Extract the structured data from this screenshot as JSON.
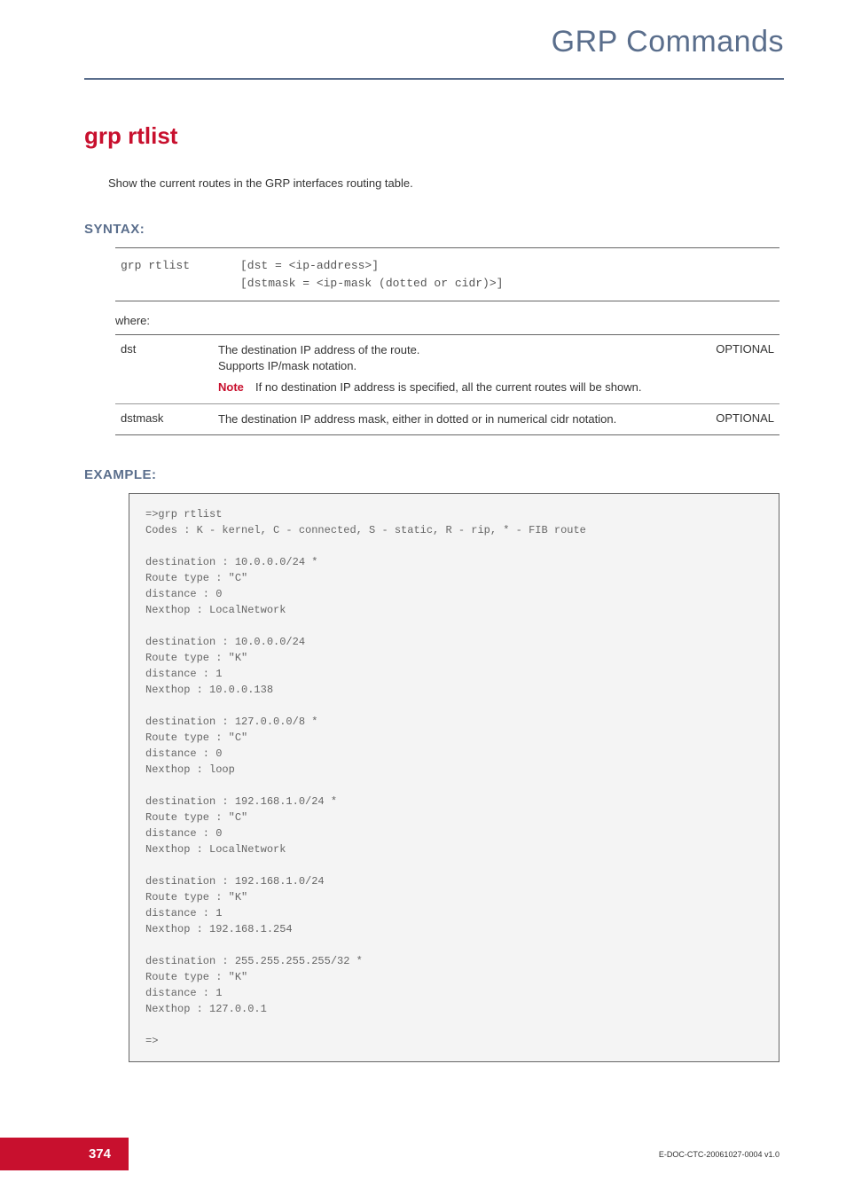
{
  "header": {
    "chapter_title": "GRP Commands"
  },
  "command": {
    "name": "grp rtlist",
    "description": "Show the current routes in the GRP interfaces routing table."
  },
  "syntax": {
    "label": "SYNTAX:",
    "command": "grp rtlist",
    "args_line1": "[dst = <ip-address>]",
    "args_line2": "[dstmask = <ip-mask (dotted or cidr)>]",
    "where_label": "where:",
    "params": [
      {
        "name": "dst",
        "desc_line1": "The destination IP address of the route.",
        "desc_line2": "Supports IP/mask notation.",
        "note_label": "Note",
        "note_text": "If no destination IP address is specified, all the current routes will be shown.",
        "optional": "OPTIONAL"
      },
      {
        "name": "dstmask",
        "desc": "The destination IP address mask, either in dotted or in numerical cidr notation.",
        "optional": "OPTIONAL"
      }
    ]
  },
  "example": {
    "label": "EXAMPLE:",
    "text": "=>grp rtlist\nCodes : K - kernel, C - connected, S - static, R - rip, * - FIB route\n\ndestination : 10.0.0.0/24 *\nRoute type : \"C\"\ndistance : 0\nNexthop : LocalNetwork\n\ndestination : 10.0.0.0/24\nRoute type : \"K\"\ndistance : 1\nNexthop : 10.0.0.138\n\ndestination : 127.0.0.0/8 *\nRoute type : \"C\"\ndistance : 0\nNexthop : loop\n\ndestination : 192.168.1.0/24 *\nRoute type : \"C\"\ndistance : 0\nNexthop : LocalNetwork\n\ndestination : 192.168.1.0/24\nRoute type : \"K\"\ndistance : 1\nNexthop : 192.168.1.254\n\ndestination : 255.255.255.255/32 *\nRoute type : \"K\"\ndistance : 1\nNexthop : 127.0.0.1\n\n=>"
  },
  "footer": {
    "page_number": "374",
    "doc_id": "E-DOC-CTC-20061027-0004 v1.0"
  },
  "colors": {
    "brand_red": "#c8102e",
    "brand_blue": "#5a6e8c",
    "text": "#333333",
    "code_bg": "#f4f4f4"
  }
}
